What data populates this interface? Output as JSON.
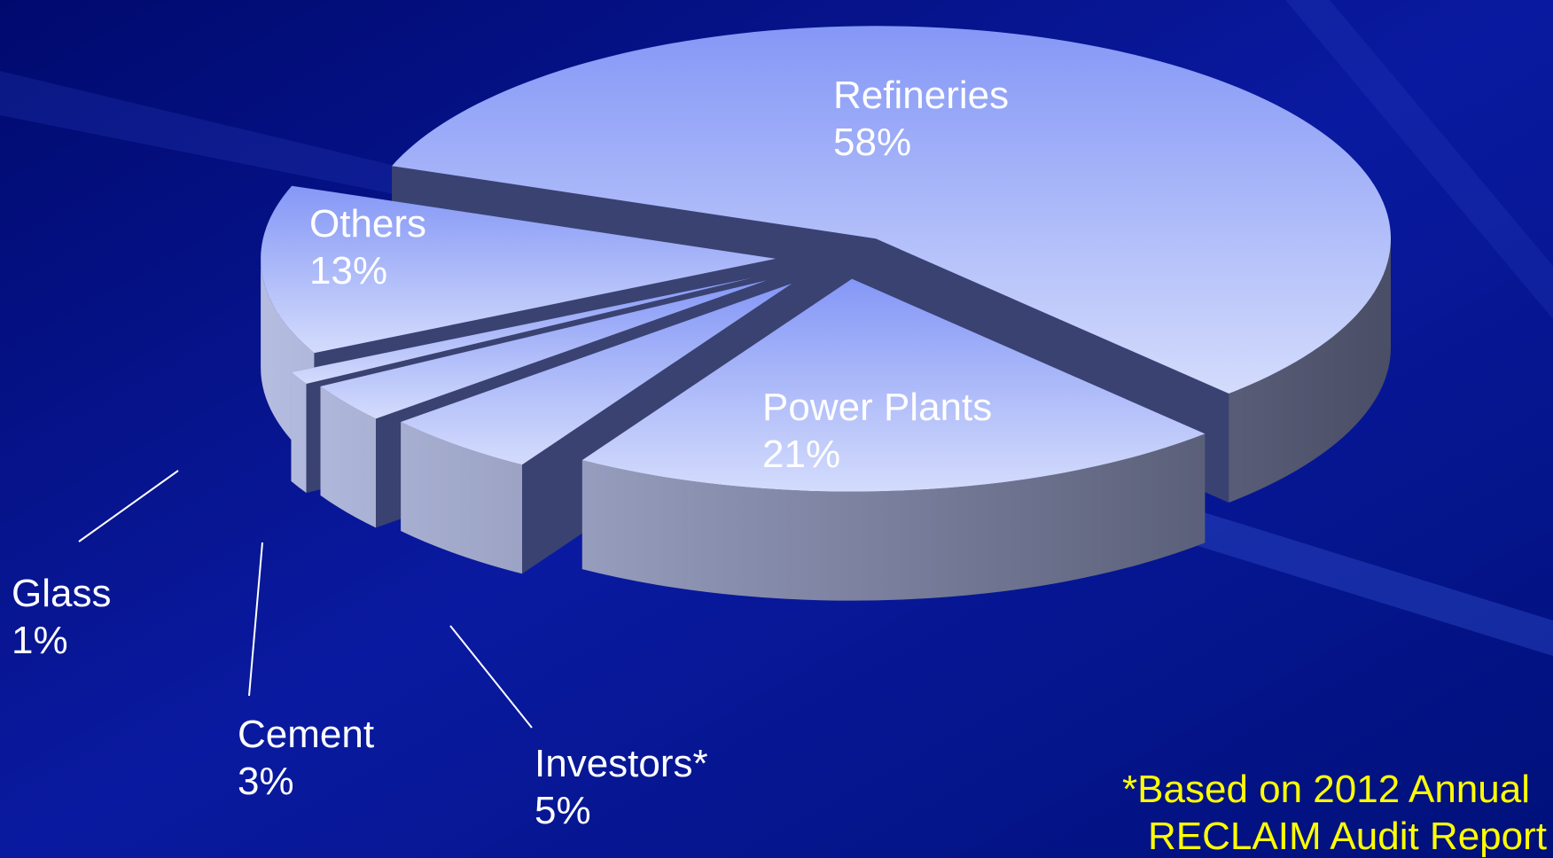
{
  "chart_data": {
    "type": "pie3d",
    "categories": [
      "Refineries",
      "Power Plants",
      "Investors*",
      "Cement",
      "Glass",
      "Others"
    ],
    "values": [
      58,
      21,
      5,
      3,
      1,
      13
    ],
    "value_labels": [
      "58%",
      "21%",
      "5%",
      "3%",
      "1%",
      "13%"
    ],
    "annotation": [
      "*Based on 2012 Annual",
      "RECLAIM Audit Report"
    ]
  }
}
